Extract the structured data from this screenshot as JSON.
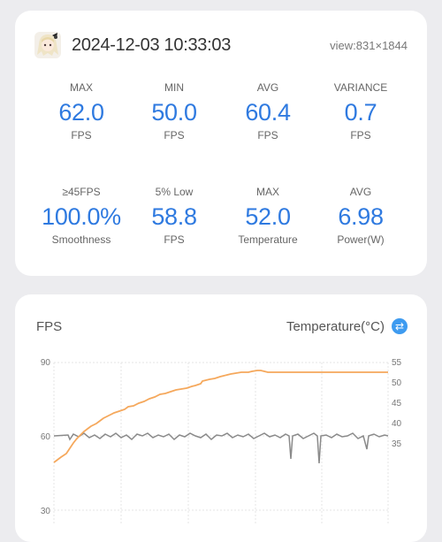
{
  "header": {
    "datetime": "2024-12-03 10:33:03",
    "view": "view:831×1844"
  },
  "stats_row1": [
    {
      "label": "MAX",
      "value": "62.0",
      "unit": "FPS"
    },
    {
      "label": "MIN",
      "value": "50.0",
      "unit": "FPS"
    },
    {
      "label": "AVG",
      "value": "60.4",
      "unit": "FPS"
    },
    {
      "label": "VARIANCE",
      "value": "0.7",
      "unit": "FPS"
    }
  ],
  "stats_row2": [
    {
      "label": "≥45FPS",
      "value": "100.0%",
      "unit": "Smoothness"
    },
    {
      "label": "5% Low",
      "value": "58.8",
      "unit": "FPS"
    },
    {
      "label": "MAX",
      "value": "52.0",
      "unit": "Temperature"
    },
    {
      "label": "AVG",
      "value": "6.98",
      "unit": "Power(W)"
    }
  ],
  "chart": {
    "left_title": "FPS",
    "right_title": "Temperature(°C)",
    "left_ticks": [
      "90",
      "60",
      "30"
    ],
    "right_ticks": [
      "55",
      "50",
      "45",
      "40",
      "35"
    ],
    "fps_color": "#8a8a8a",
    "temp_color": "#f5a85c"
  },
  "colors": {
    "value_blue": "#2f7ae0",
    "swap_icon": "#3e9bf0"
  },
  "icons": {
    "avatar": "avatar-icon",
    "swap": "swap-icon"
  }
}
